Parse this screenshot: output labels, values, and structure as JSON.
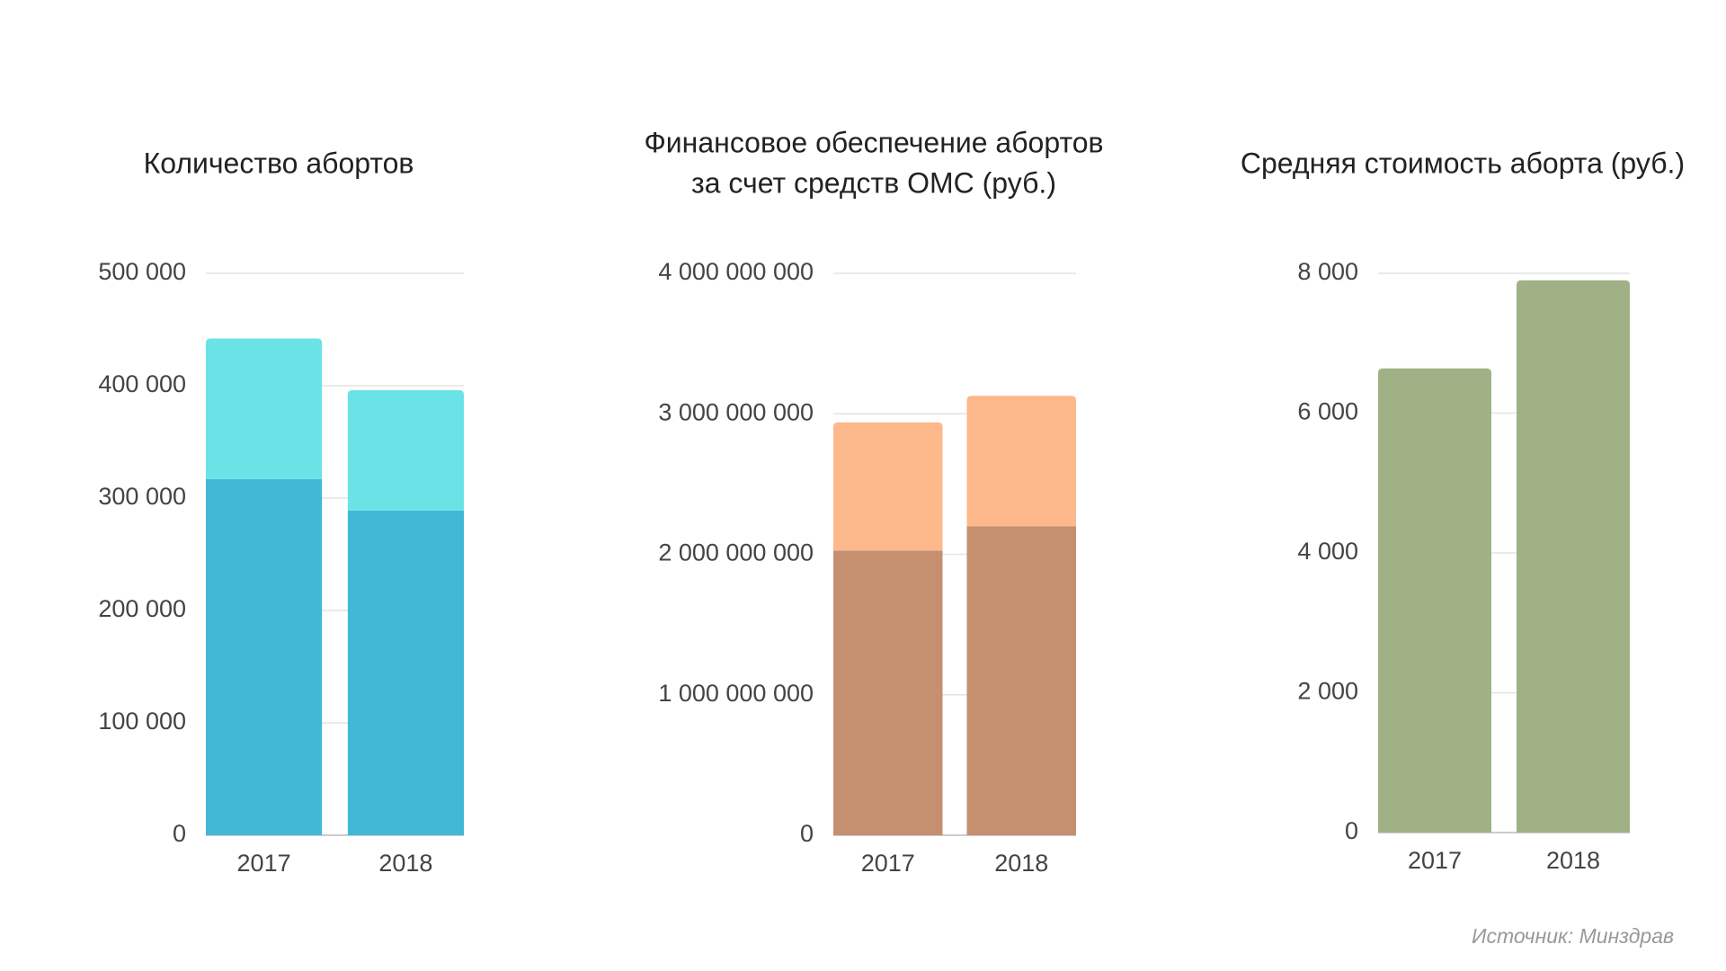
{
  "chart_data": [
    {
      "type": "bar",
      "title": "Количество абортов",
      "categories": [
        "2017",
        "2018"
      ],
      "series": [
        {
          "color": "#42b8d7",
          "values": [
            317000,
            289000
          ]
        },
        {
          "color": "#6be3e6",
          "values": [
            125000,
            107000
          ]
        }
      ],
      "ylim": [
        0,
        500000
      ],
      "yticks": [
        0,
        {
          "value": 100000,
          "label": "100 000"
        },
        {
          "value": 200000,
          "label": "200 000"
        },
        {
          "value": 300000,
          "label": "300 000"
        },
        {
          "value": 400000,
          "label": "400 000"
        },
        {
          "value": 500000,
          "label": "500 000"
        }
      ],
      "grid": true
    },
    {
      "type": "bar",
      "title": [
        "Финансовое обеспечение абортов",
        "за счет средств ОМС (руб.)"
      ],
      "categories": [
        "2017",
        "2018"
      ],
      "series": [
        {
          "color": "#c59070",
          "values": [
            2027000000,
            2200000000
          ]
        },
        {
          "color": "#fdb88c",
          "values": [
            912000000,
            928000000
          ]
        }
      ],
      "ylim": [
        0,
        4000000000
      ],
      "yticks": [
        0,
        {
          "value": 1000000000,
          "label": "1 000 000 000"
        },
        {
          "value": 2000000000,
          "label": "2 000 000 000"
        },
        {
          "value": 3000000000,
          "label": "3 000 000 000"
        },
        {
          "value": 4000000000,
          "label": "4 000 000 000"
        }
      ],
      "grid": true
    },
    {
      "type": "bar",
      "title": "Средняя стоимость аборта (руб.)",
      "categories": [
        "2017",
        "2018"
      ],
      "series": [
        {
          "color": "#a0b285",
          "values": [
            6640,
            7900
          ]
        }
      ],
      "ylim": [
        0,
        8000
      ],
      "yticks": [
        0,
        {
          "value": 2000,
          "label": "2 000"
        },
        {
          "value": 4000,
          "label": "4 000"
        },
        {
          "value": 6000,
          "label": "6 000"
        },
        {
          "value": 8000,
          "label": "8 000"
        }
      ],
      "grid": true
    }
  ],
  "source": "Источник: Минздрав"
}
